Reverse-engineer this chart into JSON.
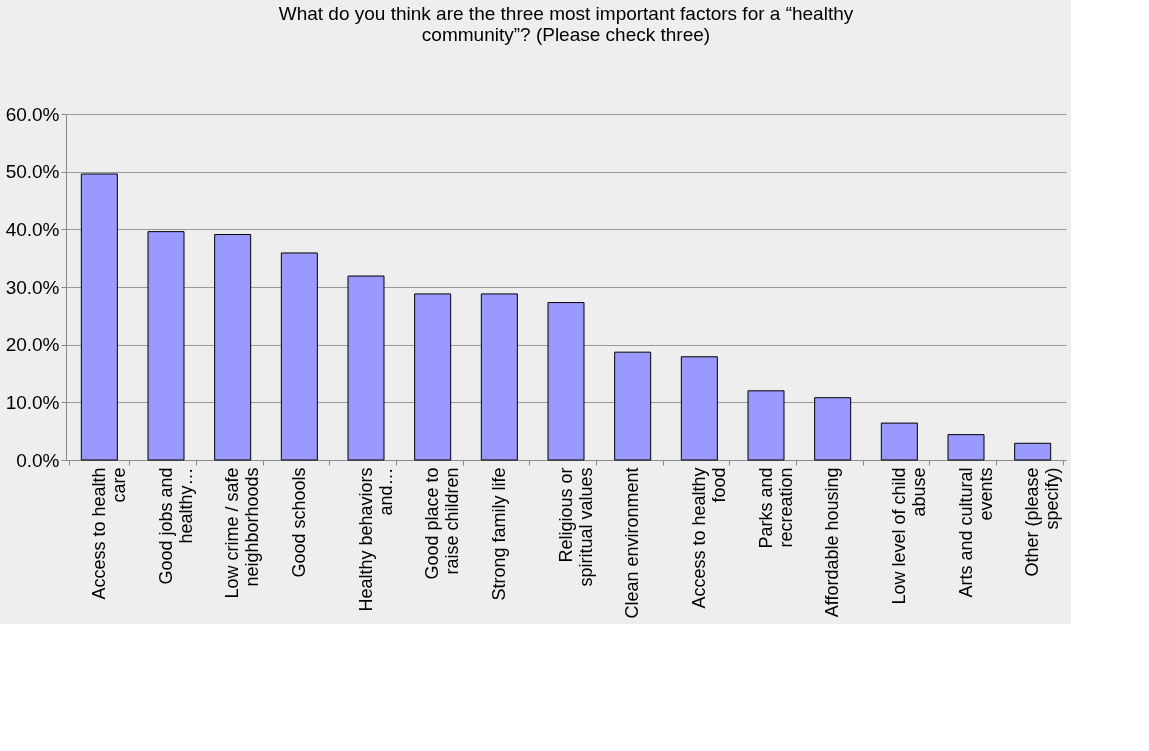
{
  "chart_data": {
    "type": "bar",
    "title": "What do you think are the three most important factors for a “healthy community”? (Please check three)",
    "categories": [
      "Access to health care",
      "Good jobs and healthy…",
      "Low crime / safe neighborhoods",
      "Good schools",
      "Healthy behaviors and…",
      "Good place to raise children",
      "Strong family life",
      "Religious or spiritual values",
      "Clean environment",
      "Access to healthy food",
      "Parks and recreation",
      "Affordable housing",
      "Low level of child abuse",
      "Arts and cultural events",
      "Other (please specify)"
    ],
    "values": [
      49.6,
      39.6,
      39.1,
      35.9,
      31.9,
      28.8,
      28.8,
      27.3,
      18.7,
      17.9,
      12.0,
      10.8,
      6.4,
      4.4,
      2.9
    ],
    "color": "#9999ff",
    "ylim": [
      0,
      60
    ],
    "yticks": [
      {
        "value": 0,
        "label": "0.0%"
      },
      {
        "value": 10,
        "label": "10.0%"
      },
      {
        "value": 20,
        "label": "20.0%"
      },
      {
        "value": 30,
        "label": "30.0%"
      },
      {
        "value": 40,
        "label": "40.0%"
      },
      {
        "value": 50,
        "label": "50.0%"
      },
      {
        "value": 60,
        "label": "60.0%"
      }
    ],
    "grid": "y"
  }
}
